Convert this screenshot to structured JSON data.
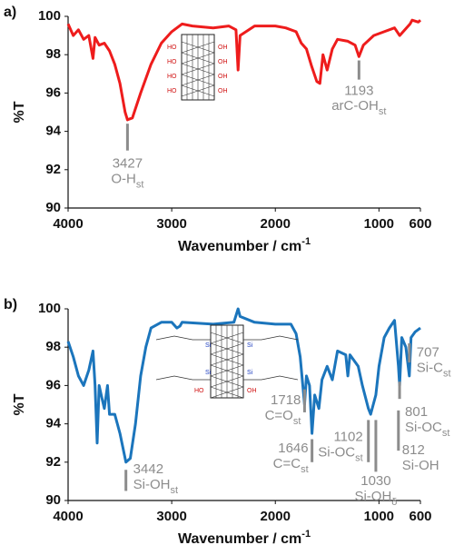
{
  "chart_data": [
    {
      "type": "line",
      "panel_label": "a)",
      "xlabel": "Wavenumber / cm",
      "xlabel_sup": "-1",
      "ylabel": "%T",
      "xlim": [
        4000,
        600
      ],
      "ylim": [
        90,
        100
      ],
      "xticks": [
        4000,
        3000,
        2000,
        1000,
        600
      ],
      "yticks": [
        90,
        92,
        94,
        96,
        98,
        100
      ],
      "inset_labels": [
        "HO",
        "OH"
      ],
      "x": [
        4000,
        3950,
        3900,
        3850,
        3800,
        3760,
        3740,
        3700,
        3650,
        3600,
        3550,
        3500,
        3450,
        3427,
        3380,
        3300,
        3200,
        3100,
        3000,
        2900,
        2800,
        2600,
        2450,
        2380,
        2360,
        2340,
        2200,
        2000,
        1900,
        1800,
        1750,
        1700,
        1650,
        1600,
        1570,
        1540,
        1500,
        1450,
        1400,
        1300,
        1230,
        1193,
        1150,
        1050,
        950,
        850,
        800,
        700,
        680,
        620,
        600
      ],
      "series": [
        {
          "color": "#ee1c1c",
          "values": [
            99.6,
            99.0,
            99.3,
            98.8,
            99.0,
            97.8,
            98.9,
            98.5,
            98.6,
            98.2,
            97.5,
            96.5,
            95.0,
            94.6,
            94.7,
            96.0,
            97.5,
            98.6,
            99.2,
            99.6,
            99.5,
            99.4,
            99.5,
            99.3,
            97.2,
            99.0,
            99.5,
            99.5,
            99.4,
            99.2,
            98.6,
            98.3,
            97.4,
            96.6,
            96.5,
            98.0,
            97.2,
            98.3,
            98.8,
            98.7,
            98.5,
            97.9,
            98.5,
            99.0,
            99.2,
            99.4,
            99.0,
            99.6,
            99.8,
            99.7,
            99.8
          ]
        }
      ],
      "annotations": [
        {
          "x": 3427,
          "text": "O-H",
          "sub": "st"
        },
        {
          "x": 1193,
          "text": "arC-OH",
          "sub": "st"
        }
      ]
    },
    {
      "type": "line",
      "panel_label": "b)",
      "xlabel": "Wavenumber / cm",
      "xlabel_sup": "-1",
      "ylabel": "%T",
      "xlim": [
        4000,
        600
      ],
      "ylim": [
        90,
        100
      ],
      "xticks": [
        4000,
        3000,
        2000,
        1000,
        600
      ],
      "yticks": [
        90,
        92,
        94,
        96,
        98,
        100
      ],
      "inset_labels": [
        "HO",
        "OH",
        "Si"
      ],
      "x": [
        4000,
        3950,
        3900,
        3850,
        3800,
        3760,
        3740,
        3720,
        3700,
        3680,
        3650,
        3620,
        3600,
        3550,
        3500,
        3450,
        3442,
        3400,
        3350,
        3300,
        3250,
        3200,
        3100,
        3000,
        2950,
        2920,
        2900,
        2600,
        2400,
        2360,
        2340,
        2200,
        2000,
        1850,
        1800,
        1760,
        1718,
        1700,
        1670,
        1646,
        1620,
        1580,
        1550,
        1500,
        1450,
        1400,
        1320,
        1300,
        1280,
        1200,
        1160,
        1102,
        1080,
        1030,
        1000,
        950,
        900,
        850,
        812,
        801,
        780,
        740,
        707,
        690,
        650,
        600
      ],
      "series": [
        {
          "color": "#1b75bc",
          "values": [
            98.3,
            97.5,
            96.5,
            96.0,
            96.8,
            97.8,
            96.0,
            93.0,
            96.0,
            95.5,
            94.8,
            96.0,
            94.5,
            94.5,
            93.5,
            92.2,
            92.0,
            92.2,
            94.0,
            96.5,
            98.0,
            99.0,
            99.3,
            99.3,
            99.0,
            99.1,
            99.3,
            99.2,
            99.3,
            100.0,
            99.6,
            99.3,
            99.2,
            99.2,
            98.7,
            97.5,
            95.0,
            96.5,
            96.0,
            93.5,
            95.5,
            94.8,
            96.3,
            97.0,
            96.3,
            97.8,
            97.6,
            96.5,
            97.6,
            97.0,
            96.0,
            94.8,
            94.5,
            95.5,
            97.0,
            98.5,
            99.0,
            99.4,
            97.0,
            96.0,
            98.5,
            98.0,
            96.5,
            98.5,
            98.8,
            99.0
          ]
        }
      ],
      "annotations": [
        {
          "x": 3442,
          "text": "Si-OH",
          "sub": "st"
        },
        {
          "x": 1718,
          "text": "C=O",
          "sub": "st"
        },
        {
          "x": 1646,
          "text": "C=C",
          "sub": "st"
        },
        {
          "x": 1102,
          "text": "Si-OC",
          "sub": "st"
        },
        {
          "x": 1030,
          "text": "Si-OH",
          "sub": "δ"
        },
        {
          "x": 812,
          "text": "Si-OH",
          "sub": ""
        },
        {
          "x": 801,
          "text": "Si-OC",
          "sub": "st"
        },
        {
          "x": 707,
          "text": "Si-C",
          "sub": "st"
        }
      ]
    }
  ]
}
